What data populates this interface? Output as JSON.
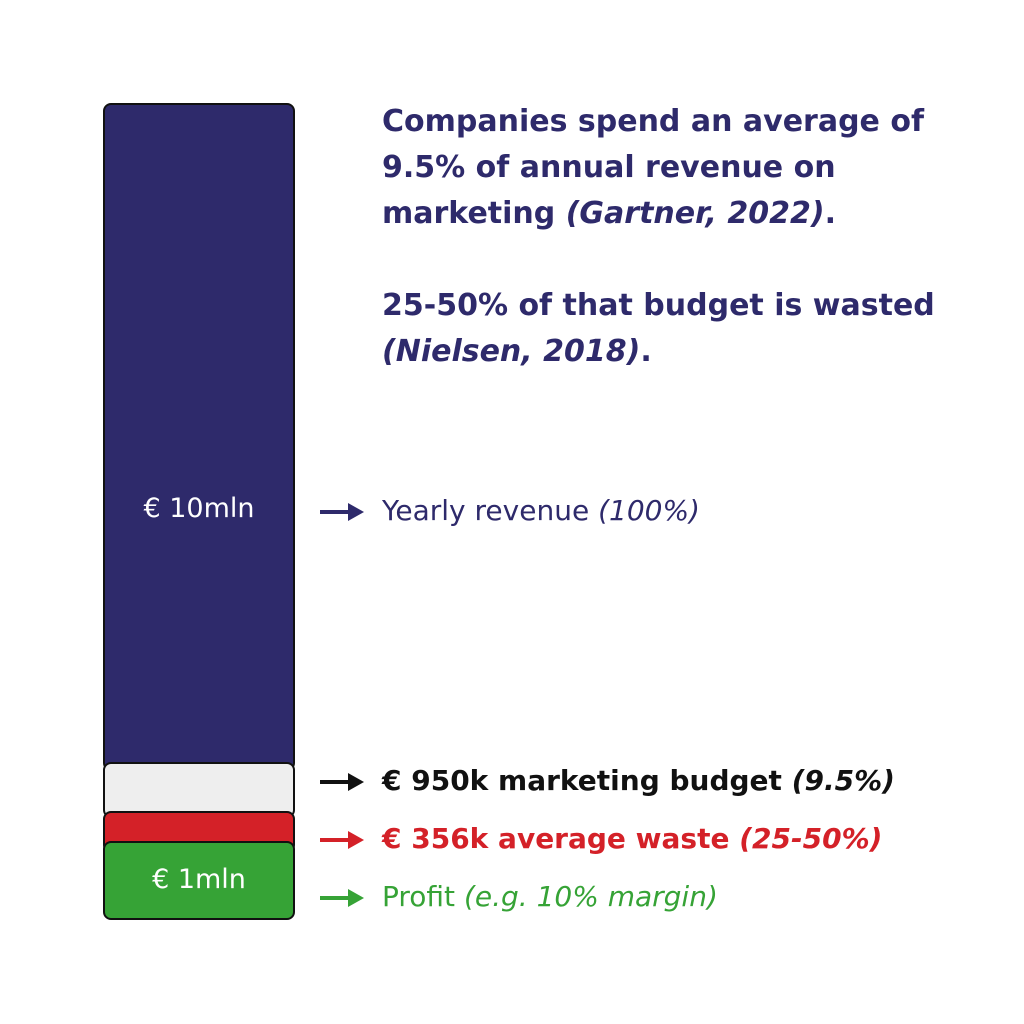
{
  "headline": {
    "line1_text": "Companies spend an average of 9.5% of annual revenue on marketing ",
    "line1_cite": "(Gartner, 2022)",
    "line1_end": ".",
    "line2_text": "25-50% of that budget is wasted ",
    "line2_cite": "(Nielsen, 2018)",
    "line2_end": "."
  },
  "chart_data": {
    "type": "bar",
    "categories": [
      "Yearly revenue",
      "Marketing budget",
      "Average waste",
      "Profit"
    ],
    "values": [
      10000000,
      950000,
      356000,
      1000000
    ],
    "bar_labels": [
      "€ 10mln",
      "",
      "",
      "€ 1mln"
    ],
    "annotations": [
      {
        "main": "Yearly revenue ",
        "note": "(100%)",
        "color": "#2e2a6b"
      },
      {
        "main": "€ 950k marketing budget ",
        "note": "(9.5%)",
        "color": "#111111"
      },
      {
        "main": "€ 356k average waste ",
        "note": "(25-50%)",
        "color": "#d42128"
      },
      {
        "main": "Profit ",
        "note": "(e.g. 10% margin)",
        "color": "#36a336"
      }
    ],
    "colors": [
      "#2e2a6b",
      "#eeeeee",
      "#d42128",
      "#36a336"
    ]
  }
}
